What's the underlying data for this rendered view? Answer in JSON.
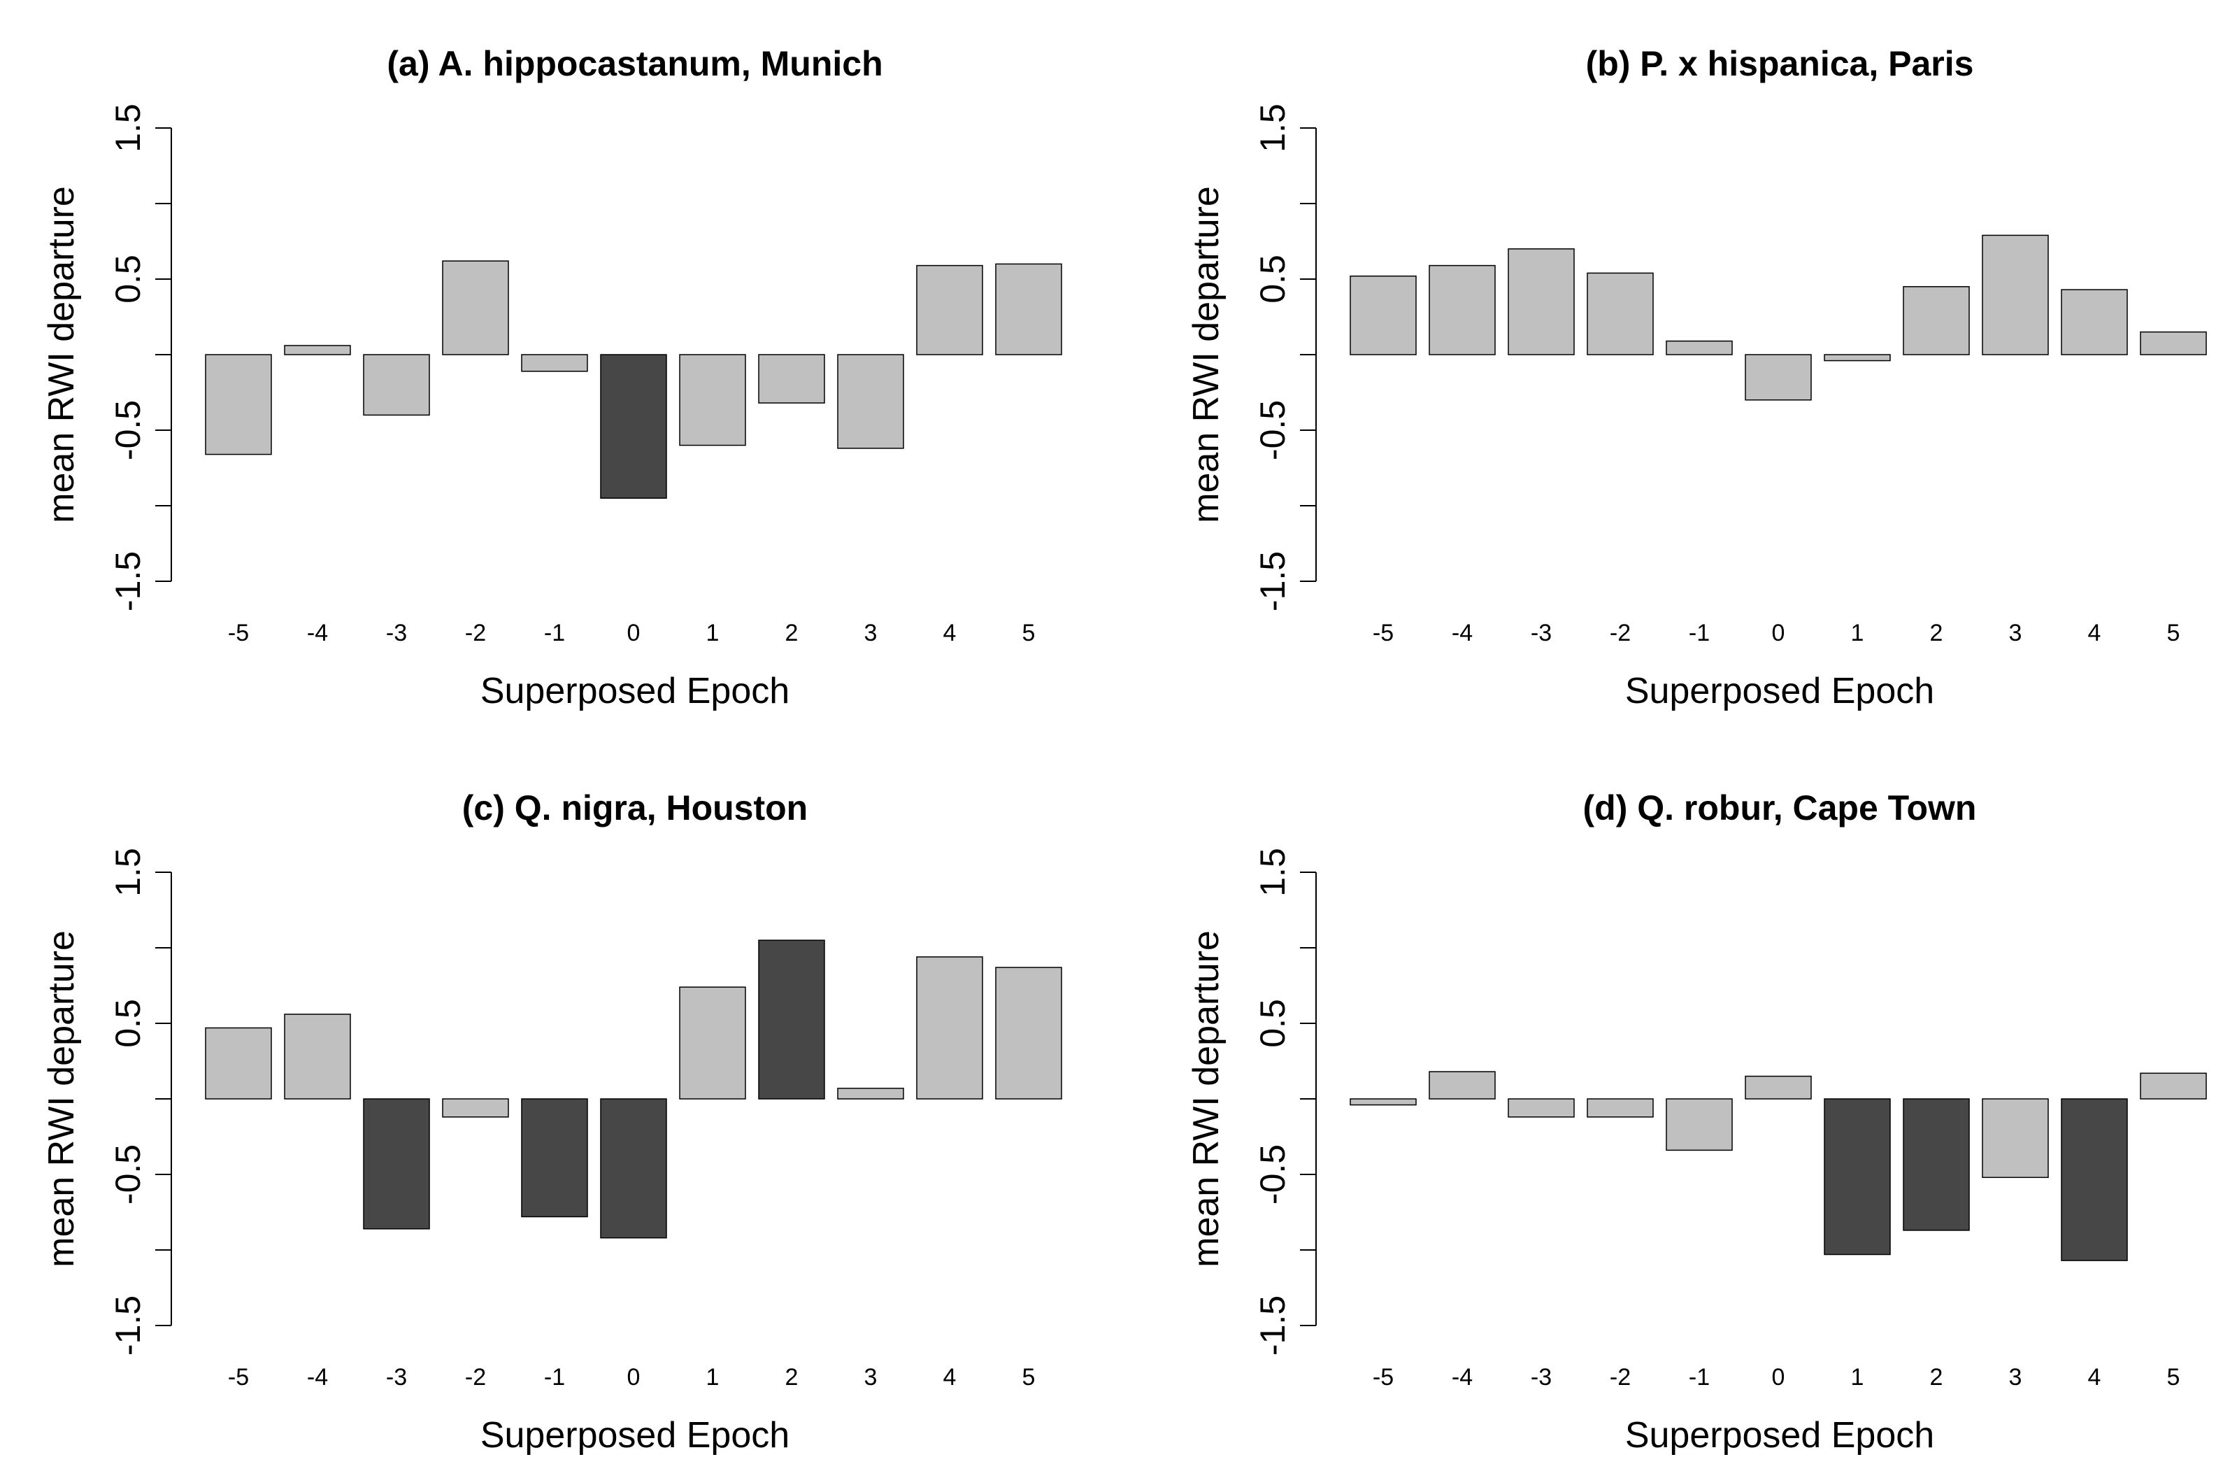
{
  "colors": {
    "light_bar": "#c0c0c0",
    "dark_bar": "#474747",
    "axis": "#000000"
  },
  "chart_data": [
    {
      "type": "bar",
      "title": "(a) A. hippocastanum, Munich",
      "xlabel": "Superposed Epoch",
      "ylabel": "mean RWI departure",
      "ylim": [
        -1.5,
        1.5
      ],
      "yticks": [
        "-1.5",
        "-0.5",
        "0.5",
        "1.5"
      ],
      "categories": [
        "-5",
        "-4",
        "-3",
        "-2",
        "-1",
        "0",
        "1",
        "2",
        "3",
        "4",
        "5"
      ],
      "values": [
        -0.66,
        0.06,
        -0.4,
        0.62,
        -0.11,
        -0.95,
        -0.6,
        -0.32,
        -0.62,
        0.59,
        0.6
      ],
      "highlight": [
        false,
        false,
        false,
        false,
        false,
        true,
        false,
        false,
        false,
        false,
        false
      ]
    },
    {
      "type": "bar",
      "title": "(b) P. x hispanica, Paris",
      "xlabel": "Superposed Epoch",
      "ylabel": "mean RWI departure",
      "ylim": [
        -1.5,
        1.5
      ],
      "yticks": [
        "-1.5",
        "-0.5",
        "0.5",
        "1.5"
      ],
      "categories": [
        "-5",
        "-4",
        "-3",
        "-2",
        "-1",
        "0",
        "1",
        "2",
        "3",
        "4",
        "5"
      ],
      "values": [
        0.52,
        0.59,
        0.7,
        0.54,
        0.09,
        -0.3,
        -0.04,
        0.45,
        0.79,
        0.43,
        0.15
      ],
      "highlight": [
        false,
        false,
        false,
        false,
        false,
        false,
        false,
        false,
        false,
        false,
        false
      ]
    },
    {
      "type": "bar",
      "title": "(c) Q. nigra, Houston",
      "xlabel": "Superposed Epoch",
      "ylabel": "mean RWI departure",
      "ylim": [
        -1.5,
        1.5
      ],
      "yticks": [
        "-1.5",
        "-0.5",
        "0.5",
        "1.5"
      ],
      "categories": [
        "-5",
        "-4",
        "-3",
        "-2",
        "-1",
        "0",
        "1",
        "2",
        "3",
        "4",
        "5"
      ],
      "values": [
        0.47,
        0.56,
        -0.86,
        -0.12,
        -0.78,
        -0.92,
        0.74,
        1.05,
        0.07,
        0.94,
        0.87
      ],
      "highlight": [
        false,
        false,
        true,
        false,
        true,
        true,
        false,
        true,
        false,
        false,
        false
      ]
    },
    {
      "type": "bar",
      "title": "(d) Q. robur, Cape Town",
      "xlabel": "Superposed Epoch",
      "ylabel": "mean RWI departure",
      "ylim": [
        -1.5,
        1.5
      ],
      "yticks": [
        "-1.5",
        "-0.5",
        "0.5",
        "1.5"
      ],
      "categories": [
        "-5",
        "-4",
        "-3",
        "-2",
        "-1",
        "0",
        "1",
        "2",
        "3",
        "4",
        "5"
      ],
      "values": [
        -0.04,
        0.18,
        -0.12,
        -0.12,
        -0.34,
        0.15,
        -1.03,
        -0.87,
        -0.52,
        -1.07,
        0.17
      ],
      "highlight": [
        false,
        false,
        false,
        false,
        false,
        false,
        true,
        true,
        false,
        true,
        false
      ]
    }
  ]
}
